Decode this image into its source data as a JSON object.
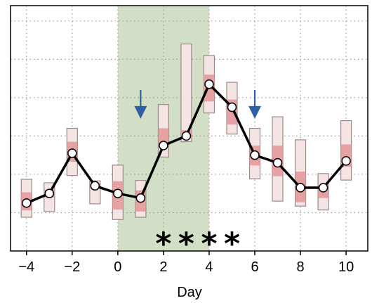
{
  "chart_data": {
    "type": "line",
    "title": "",
    "xlabel": "Day",
    "ylabel": "",
    "xlim": [
      -4.7,
      10.95
    ],
    "ylim": [
      0,
      6.4
    ],
    "x_ticks": [
      -4,
      -2,
      0,
      2,
      4,
      6,
      8,
      10
    ],
    "x_tick_labels": [
      "−4",
      "−2",
      "0",
      "2",
      "4",
      "6",
      "8",
      "10"
    ],
    "y_grid": [
      1,
      2,
      3,
      4,
      5,
      6
    ],
    "grid": true,
    "shaded_region": {
      "from": 0,
      "to": 4,
      "color": "#d2dfc6"
    },
    "series": [
      {
        "x": [
          -4,
          -3,
          -2,
          -1,
          0,
          1,
          2,
          3,
          4,
          5,
          6,
          7,
          8,
          9,
          10
        ],
        "values": [
          1.25,
          1.5,
          2.55,
          1.7,
          1.5,
          1.38,
          2.75,
          3.0,
          4.35,
          3.75,
          2.5,
          2.3,
          1.65,
          1.65,
          2.35
        ]
      }
    ],
    "boxes": [
      {
        "x": -4,
        "outer": [
          0.88,
          1.87
        ],
        "inner": [
          1.06,
          1.53
        ]
      },
      {
        "x": -3,
        "outer": [
          1.03,
          1.78
        ],
        "inner": [
          1.4,
          1.6
        ]
      },
      {
        "x": -2,
        "outer": [
          1.97,
          3.2
        ],
        "inner": [
          2.33,
          2.85
        ]
      },
      {
        "x": -1,
        "outer": [
          1.23,
          1.83
        ],
        "inner": [
          1.63,
          1.76
        ]
      },
      {
        "x": 0,
        "outer": [
          0.82,
          2.24
        ],
        "inner": [
          1.08,
          1.82
        ]
      },
      {
        "x": 1,
        "outer": [
          0.88,
          1.84
        ],
        "inner": [
          1.03,
          1.58
        ]
      },
      {
        "x": 2,
        "outer": [
          2.45,
          3.82
        ],
        "inner": [
          2.75,
          3.2
        ]
      },
      {
        "x": 3,
        "outer": [
          2.85,
          5.4
        ],
        "inner": [
          2.94,
          3.15
        ]
      },
      {
        "x": 4,
        "outer": [
          3.6,
          5.1
        ],
        "inner": [
          3.9,
          4.6
        ]
      },
      {
        "x": 5,
        "outer": [
          3.05,
          4.4
        ],
        "inner": [
          3.3,
          3.95
        ]
      },
      {
        "x": 6,
        "outer": [
          1.88,
          3.2
        ],
        "inner": [
          2.23,
          2.75
        ]
      },
      {
        "x": 7,
        "outer": [
          1.3,
          3.5
        ],
        "inner": [
          1.95,
          2.75
        ]
      },
      {
        "x": 8,
        "outer": [
          1.17,
          2.9
        ],
        "inner": [
          1.27,
          2.07
        ]
      },
      {
        "x": 9,
        "outer": [
          1.07,
          2.02
        ],
        "inner": [
          1.38,
          1.72
        ]
      },
      {
        "x": 10,
        "outer": [
          1.85,
          3.4
        ],
        "inner": [
          2.2,
          2.78
        ]
      }
    ],
    "arrows": [
      {
        "x": 1,
        "y_top": 4.2,
        "y_tip": 3.45
      },
      {
        "x": 6,
        "y_top": 4.2,
        "y_tip": 3.45
      }
    ],
    "annotations": [
      {
        "text": "*",
        "x": 2,
        "y": 0.25
      },
      {
        "text": "*",
        "x": 3,
        "y": 0.25
      },
      {
        "text": "*",
        "x": 4,
        "y": 0.25
      },
      {
        "text": "*",
        "x": 5,
        "y": 0.25
      }
    ],
    "colors": {
      "line": "#000000",
      "marker_fill": "#ffffff",
      "box_outer_fill": "#f5e4e4",
      "box_outer_stroke": "#9a8a8a",
      "box_inner_fill": "#e39697",
      "arrow": "#2e5fa3",
      "grid": "#9a9a9a"
    }
  }
}
